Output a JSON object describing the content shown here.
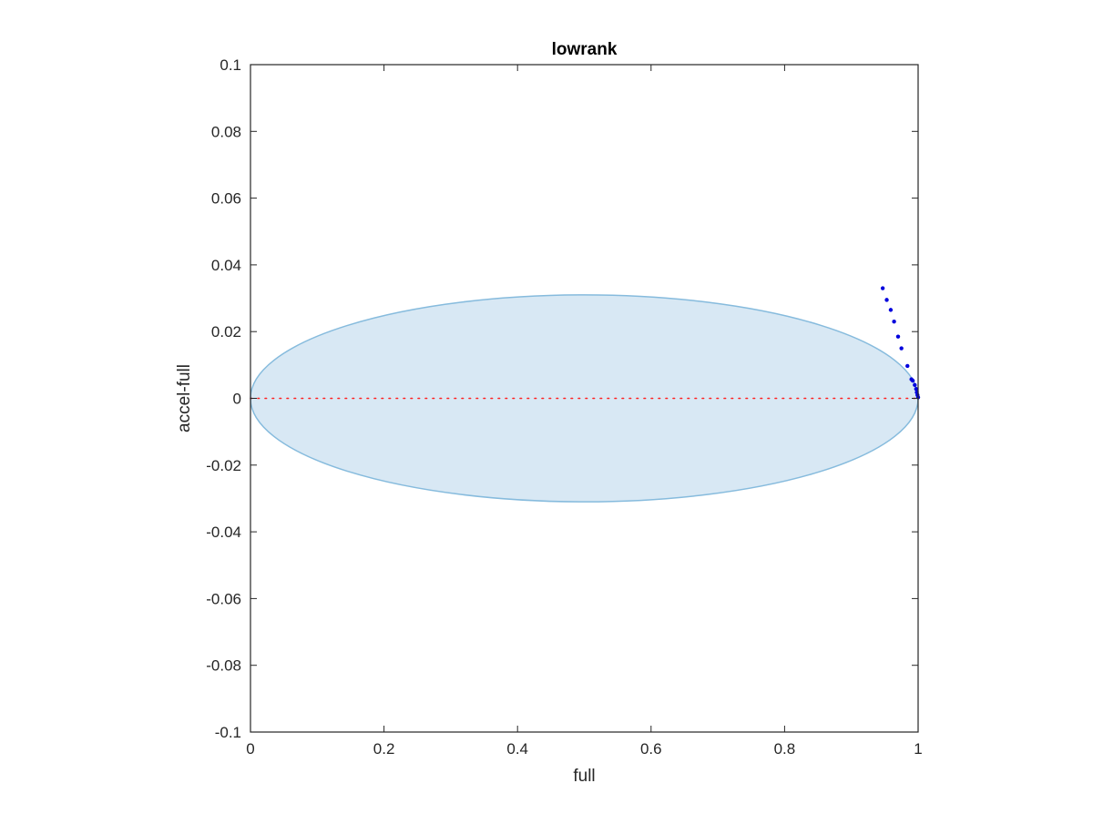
{
  "chart_data": {
    "type": "scatter",
    "title": "lowrank",
    "xlabel": "full",
    "ylabel": "accel-full",
    "xlim": [
      0,
      1
    ],
    "ylim": [
      -0.1,
      0.1
    ],
    "x_ticks": [
      0,
      0.2,
      0.4,
      0.6,
      0.8,
      1
    ],
    "x_tick_labels": [
      "0",
      "0.2",
      "0.4",
      "0.6",
      "0.8",
      "1"
    ],
    "y_ticks": [
      -0.1,
      -0.08,
      -0.06,
      -0.04,
      -0.02,
      0,
      0.02,
      0.04,
      0.06,
      0.08,
      0.1
    ],
    "y_tick_labels": [
      "-0.1",
      "-0.08",
      "-0.06",
      "-0.04",
      "-0.02",
      "0",
      "0.02",
      "0.04",
      "0.06",
      "0.08",
      "0.1"
    ],
    "grid": false,
    "box": true,
    "stability_region": {
      "shape": "ellipse",
      "center_x": 0.5,
      "center_y": 0,
      "x_min": 0,
      "x_max": 1,
      "y_min": -0.031,
      "y_max": 0.031,
      "fill_color": "#d8e8f4",
      "edge_color": "#86bbdd"
    },
    "reference_line": {
      "y": 0,
      "x_range": [
        0,
        1
      ],
      "style": "dotted",
      "color": "#ff2020"
    },
    "series": [
      {
        "marker": "dot",
        "color": "#0000dd",
        "x": [
          0.947,
          0.953,
          0.959,
          0.964,
          0.97,
          0.975,
          0.984,
          0.99,
          0.992,
          0.995,
          0.997,
          0.998,
          0.999,
          1.0
        ],
        "y": [
          0.033,
          0.0295,
          0.0265,
          0.023,
          0.0185,
          0.015,
          0.0097,
          0.0057,
          0.0053,
          0.004,
          0.0028,
          0.0018,
          0.001,
          0.0003
        ]
      }
    ]
  }
}
